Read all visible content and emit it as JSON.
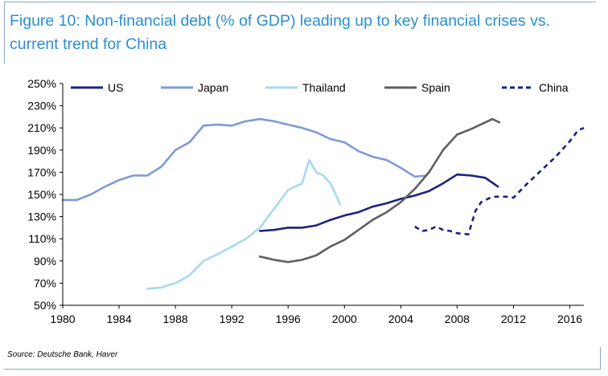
{
  "title": "Figure 10: Non-financial debt (% of GDP) leading up to key financial crises vs. current trend for China",
  "source": "Source: Deutsche Bank, Haver",
  "colors": {
    "US": "#1a237e",
    "Japan": "#7f99d6",
    "Thailand": "#a8d8f0",
    "Spain": "#5f5f5f",
    "China": "#1a237e",
    "title": "#2a8fcf"
  },
  "chart_data": {
    "type": "line",
    "title": "Figure 10: Non-financial debt (% of GDP) leading up to key financial crises vs. current trend for China",
    "xlabel": "",
    "ylabel": "",
    "xlim": [
      1980,
      2017
    ],
    "ylim": [
      50,
      250
    ],
    "x_ticks": [
      1980,
      1984,
      1988,
      1992,
      1996,
      2000,
      2004,
      2008,
      2012,
      2016
    ],
    "y_ticks": [
      50,
      70,
      90,
      110,
      130,
      150,
      170,
      190,
      210,
      230,
      250
    ],
    "y_tick_labels": [
      "50%",
      "70%",
      "90%",
      "110%",
      "130%",
      "150%",
      "170%",
      "190%",
      "210%",
      "230%",
      "250%"
    ],
    "legend_position": "top",
    "grid": false,
    "series": [
      {
        "name": "US",
        "style": "solid",
        "points": [
          [
            1994,
            117
          ],
          [
            1995,
            118
          ],
          [
            1996,
            120
          ],
          [
            1997,
            120
          ],
          [
            1998,
            122
          ],
          [
            1999,
            127
          ],
          [
            2000,
            131
          ],
          [
            2001,
            134
          ],
          [
            2002,
            139
          ],
          [
            2003,
            142
          ],
          [
            2004,
            146
          ],
          [
            2005,
            149
          ],
          [
            2006,
            153
          ],
          [
            2007,
            160
          ],
          [
            2008,
            168
          ],
          [
            2009,
            167
          ],
          [
            2010,
            165
          ],
          [
            2010.9,
            157
          ]
        ]
      },
      {
        "name": "Japan",
        "style": "solid",
        "points": [
          [
            1980,
            145
          ],
          [
            1981,
            145
          ],
          [
            1982,
            150
          ],
          [
            1983,
            157
          ],
          [
            1984,
            163
          ],
          [
            1985,
            167
          ],
          [
            1986,
            167
          ],
          [
            1987,
            175
          ],
          [
            1988,
            190
          ],
          [
            1989,
            197
          ],
          [
            1990,
            212
          ],
          [
            1991,
            213
          ],
          [
            1992,
            212
          ],
          [
            1993,
            216
          ],
          [
            1994,
            218
          ],
          [
            1995,
            216
          ],
          [
            1996,
            213
          ],
          [
            1997,
            210
          ],
          [
            1998,
            206
          ],
          [
            1999,
            200
          ],
          [
            2000,
            197
          ],
          [
            2001,
            189
          ],
          [
            2002,
            184
          ],
          [
            2003,
            181
          ],
          [
            2004,
            174
          ],
          [
            2005,
            166
          ],
          [
            2005.8,
            167
          ]
        ]
      },
      {
        "name": "Thailand",
        "style": "solid",
        "points": [
          [
            1986,
            65
          ],
          [
            1987,
            66
          ],
          [
            1988,
            70
          ],
          [
            1989,
            77
          ],
          [
            1990,
            90
          ],
          [
            1991,
            96
          ],
          [
            1992,
            103
          ],
          [
            1993,
            110
          ],
          [
            1994,
            120
          ],
          [
            1995,
            137
          ],
          [
            1996,
            154
          ],
          [
            1997,
            160
          ],
          [
            1997.5,
            181
          ],
          [
            1998,
            170
          ],
          [
            1998.5,
            167
          ],
          [
            1999,
            160
          ],
          [
            1999.7,
            141
          ]
        ]
      },
      {
        "name": "Spain",
        "style": "solid",
        "points": [
          [
            1994,
            94
          ],
          [
            1995,
            91
          ],
          [
            1996,
            89
          ],
          [
            1997,
            91
          ],
          [
            1998,
            95
          ],
          [
            1999,
            103
          ],
          [
            2000,
            109
          ],
          [
            2001,
            118
          ],
          [
            2002,
            127
          ],
          [
            2003,
            134
          ],
          [
            2004,
            143
          ],
          [
            2005,
            155
          ],
          [
            2006,
            170
          ],
          [
            2007,
            190
          ],
          [
            2008,
            204
          ],
          [
            2009,
            209
          ],
          [
            2010,
            215
          ],
          [
            2010.5,
            218
          ],
          [
            2011,
            215
          ]
        ]
      },
      {
        "name": "China",
        "style": "dashed",
        "points": [
          [
            2005,
            121
          ],
          [
            2005.5,
            117
          ],
          [
            2006,
            118
          ],
          [
            2006.5,
            121
          ],
          [
            2007,
            118
          ],
          [
            2007.5,
            117
          ],
          [
            2008,
            115
          ],
          [
            2008.8,
            114
          ],
          [
            2009.3,
            135
          ],
          [
            2009.7,
            143
          ],
          [
            2010.5,
            148
          ],
          [
            2011.5,
            148
          ],
          [
            2012,
            147
          ],
          [
            2013,
            160
          ],
          [
            2014,
            172
          ],
          [
            2015,
            184
          ],
          [
            2016,
            198
          ],
          [
            2016.6,
            208
          ],
          [
            2017,
            210
          ]
        ]
      }
    ]
  }
}
